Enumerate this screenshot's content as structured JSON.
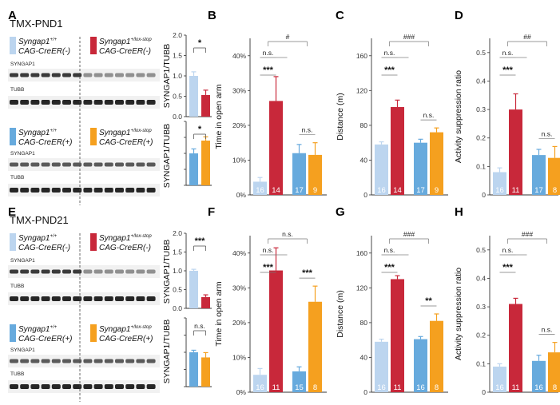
{
  "panel_letters": [
    "A",
    "B",
    "C",
    "D",
    "E",
    "F",
    "G",
    "H"
  ],
  "colors": {
    "light_blue": "#bcd5ef",
    "mid_blue": "#67aadd",
    "red": "#c8283a",
    "orange": "#f5a01f",
    "error": "#555555"
  },
  "blots": {
    "top": {
      "title": "TMX-PND1",
      "legend1": [
        {
          "line1": "Syngap1",
          "sup1": "+/+",
          "line2": "CAG-CreER(-)",
          "color": "light_blue"
        },
        {
          "line1": "Syngap1",
          "sup1": "+/lox-stop",
          "line2": "CAG-CreER(-)",
          "color": "red"
        }
      ],
      "legend2": [
        {
          "line1": "Syngap1",
          "sup1": "+/+",
          "line2": "CAG-CreER(+)",
          "color": "mid_blue"
        },
        {
          "line1": "Syngap1",
          "sup1": "+/lox-stop",
          "line2": "CAG-CreER(+)",
          "color": "orange"
        }
      ],
      "bands": [
        "SYNGAP1",
        "TUBB",
        "SYNGAP1",
        "TUBB"
      ]
    },
    "bottom": {
      "title": "TMX-PND21",
      "legend1": [
        {
          "line1": "Syngap1",
          "sup1": "+/+",
          "line2": "CAG-CreER(-)",
          "color": "light_blue"
        },
        {
          "line1": "Syngap1",
          "sup1": "+/lox-stop",
          "line2": "CAG-CreER(-)",
          "color": "red"
        }
      ],
      "legend2": [
        {
          "line1": "Syngap1",
          "sup1": "+/+",
          "line2": "CAG-CreER(+)",
          "color": "mid_blue"
        },
        {
          "line1": "Syngap1",
          "sup1": "+/lox-stop",
          "line2": "CAG-CreER(+)",
          "color": "orange"
        }
      ],
      "bands": [
        "SYNGAP1",
        "TUBB",
        "SYNGAP1",
        "TUBB"
      ]
    }
  },
  "chart_data": [
    {
      "id": "A1",
      "type": "bar",
      "ylabel": "SYNGAP1/TUBB",
      "ylim": [
        0,
        2
      ],
      "yticks": [
        "0.0",
        "0.5",
        "1.0",
        "1.5",
        "2.0"
      ],
      "yticks_shown": [
        0,
        0.5,
        1,
        1.5,
        2
      ],
      "values": [
        1.0,
        0.53
      ],
      "errors": [
        0.1,
        0.12
      ],
      "colors": [
        "light_blue",
        "red"
      ],
      "sig": "*",
      "shared_axis_label": "SYNGAP1/TUBB"
    },
    {
      "id": "A2",
      "type": "bar",
      "ylim": [
        0,
        2
      ],
      "yticks": [],
      "values": [
        1.0,
        1.4
      ],
      "errors": [
        0.14,
        0.12
      ],
      "colors": [
        "mid_blue",
        "orange"
      ],
      "sig": "*"
    },
    {
      "id": "E1",
      "type": "bar",
      "ylabel": "SYNGAP1/TUBB",
      "ylim": [
        0,
        2
      ],
      "yticks": [
        "0.0",
        "0.5",
        "1.0",
        "1.5",
        "2.0"
      ],
      "yticks_shown": [
        0,
        0.5,
        1,
        1.5,
        2
      ],
      "values": [
        1.0,
        0.3
      ],
      "errors": [
        0.04,
        0.06
      ],
      "colors": [
        "light_blue",
        "red"
      ],
      "sig": "***"
    },
    {
      "id": "E2",
      "type": "bar",
      "ylabel": "SYNGAP1/TUBB",
      "ylim": [
        0,
        2
      ],
      "yticks": [],
      "values": [
        1.0,
        0.85
      ],
      "errors": [
        0.06,
        0.14
      ],
      "colors": [
        "mid_blue",
        "orange"
      ],
      "sig": "n.s."
    },
    {
      "id": "B",
      "type": "bar",
      "ylabel": "Time in open arm",
      "ylim": [
        0,
        45
      ],
      "yticks": [
        "0%",
        "10%",
        "20%",
        "30%",
        "40%"
      ],
      "yticks_shown": [
        0,
        10,
        20,
        30,
        40
      ],
      "values": [
        3.8,
        27,
        12,
        11.5
      ],
      "errors": [
        1.2,
        7,
        2.5,
        3.5
      ],
      "n": [
        "16",
        "14",
        "17",
        "9"
      ],
      "colors": [
        "light_blue",
        "red",
        "mid_blue",
        "orange"
      ],
      "sig": [
        {
          "a": 0,
          "b": 1,
          "label": "***"
        },
        {
          "a": 0,
          "b": 1,
          "label": "n.s."
        },
        {
          "a": 2,
          "b": 3,
          "label": "n.s."
        },
        {
          "a": "01",
          "b": "23",
          "label": "#"
        }
      ]
    },
    {
      "id": "C",
      "type": "bar",
      "ylabel": "Distance (m)",
      "ylim": [
        0,
        180
      ],
      "yticks": [
        "0",
        "40",
        "80",
        "120",
        "160"
      ],
      "yticks_shown": [
        0,
        40,
        80,
        120,
        160
      ],
      "values": [
        58,
        101,
        60,
        72
      ],
      "errors": [
        3,
        8,
        4,
        5
      ],
      "n": [
        "16",
        "14",
        "17",
        "9"
      ],
      "colors": [
        "light_blue",
        "red",
        "mid_blue",
        "orange"
      ],
      "sig": [
        {
          "a": 0,
          "b": 1,
          "label": "***"
        },
        {
          "a": 0,
          "b": 1,
          "label": "n.s."
        },
        {
          "a": 2,
          "b": 3,
          "label": "n.s."
        },
        {
          "a": "01",
          "b": "23",
          "label": "###"
        }
      ]
    },
    {
      "id": "D",
      "type": "bar",
      "ylabel": "Activity suppression ratio",
      "ylim": [
        0,
        0.55
      ],
      "yticks": [
        "0",
        "0.1",
        "0.2",
        "0.3",
        "0.4",
        "0.5"
      ],
      "yticks_shown": [
        0,
        0.1,
        0.2,
        0.3,
        0.4,
        0.5
      ],
      "values": [
        0.08,
        0.3,
        0.14,
        0.13
      ],
      "errors": [
        0.015,
        0.055,
        0.02,
        0.04
      ],
      "n": [
        "16",
        "11",
        "17",
        "8"
      ],
      "colors": [
        "light_blue",
        "red",
        "mid_blue",
        "orange"
      ],
      "sig": [
        {
          "a": 0,
          "b": 1,
          "label": "***"
        },
        {
          "a": 0,
          "b": 1,
          "label": "n.s."
        },
        {
          "a": 2,
          "b": 3,
          "label": "n.s."
        },
        {
          "a": "01",
          "b": "23",
          "label": "##"
        }
      ]
    },
    {
      "id": "F",
      "type": "bar",
      "ylabel": "Time in open arm",
      "ylim": [
        0,
        45
      ],
      "yticks": [
        "0%",
        "10%",
        "20%",
        "30%",
        "40%"
      ],
      "yticks_shown": [
        0,
        10,
        20,
        30,
        40
      ],
      "values": [
        5,
        35,
        6,
        26
      ],
      "errors": [
        1.8,
        6.5,
        1.3,
        4.5
      ],
      "n": [
        "16",
        "11",
        "15",
        "8"
      ],
      "colors": [
        "light_blue",
        "red",
        "mid_blue",
        "orange"
      ],
      "sig": [
        {
          "a": 0,
          "b": 1,
          "label": "***"
        },
        {
          "a": 0,
          "b": 1,
          "label": "n.s."
        },
        {
          "a": 2,
          "b": 3,
          "label": "***"
        },
        {
          "a": "01",
          "b": "23",
          "label": "n.s."
        }
      ]
    },
    {
      "id": "G",
      "type": "bar",
      "ylabel": "Distance (m)",
      "ylim": [
        0,
        180
      ],
      "yticks": [
        "0",
        "40",
        "80",
        "120",
        "160"
      ],
      "yticks_shown": [
        0,
        40,
        80,
        120,
        160
      ],
      "values": [
        58,
        130,
        61,
        82
      ],
      "errors": [
        3,
        4,
        3,
        8
      ],
      "n": [
        "16",
        "11",
        "16",
        "8"
      ],
      "colors": [
        "light_blue",
        "red",
        "mid_blue",
        "orange"
      ],
      "sig": [
        {
          "a": 0,
          "b": 1,
          "label": "***"
        },
        {
          "a": 0,
          "b": 1,
          "label": "n.s."
        },
        {
          "a": 2,
          "b": 3,
          "label": "**"
        },
        {
          "a": "01",
          "b": "23",
          "label": "###"
        }
      ]
    },
    {
      "id": "H",
      "type": "bar",
      "ylabel": "Activity suppression ratio",
      "ylim": [
        0,
        0.55
      ],
      "yticks": [
        "0",
        "0.1",
        "0.2",
        "0.3",
        "0.4",
        "0.5"
      ],
      "yticks_shown": [
        0,
        0.1,
        0.2,
        0.3,
        0.4,
        0.5
      ],
      "values": [
        0.09,
        0.31,
        0.11,
        0.14
      ],
      "errors": [
        0.01,
        0.02,
        0.02,
        0.035
      ],
      "n": [
        "16",
        "11",
        "16",
        "8"
      ],
      "colors": [
        "light_blue",
        "red",
        "mid_blue",
        "orange"
      ],
      "sig": [
        {
          "a": 0,
          "b": 1,
          "label": "***"
        },
        {
          "a": 0,
          "b": 1,
          "label": "n.s."
        },
        {
          "a": 2,
          "b": 3,
          "label": "n.s."
        },
        {
          "a": "01",
          "b": "23",
          "label": "###"
        }
      ]
    }
  ]
}
